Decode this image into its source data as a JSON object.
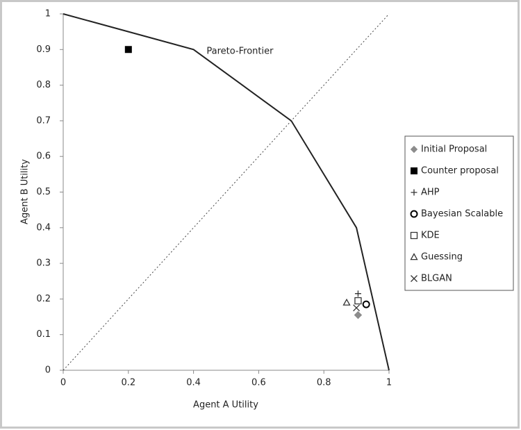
{
  "chart_data": {
    "type": "scatter",
    "x_label": "Agent A Utility",
    "y_label": "Agent B Utility",
    "xlim": [
      0,
      1
    ],
    "ylim": [
      0,
      1
    ],
    "xticks": [
      0,
      0.2,
      0.4,
      0.6,
      0.8,
      1
    ],
    "yticks": [
      0,
      0.1,
      0.2,
      0.3,
      0.4,
      0.5,
      0.6,
      0.7,
      0.8,
      0.9,
      1
    ],
    "grid": false,
    "legend": "right",
    "annotations": [
      {
        "text": "Pareto-Frontier",
        "x": 0.44,
        "y": 0.895
      }
    ],
    "series": [
      {
        "line": "solid",
        "color": "#222222",
        "x": [
          0,
          0.2,
          0.4,
          0.55,
          0.7,
          0.8,
          0.9,
          1
        ],
        "values": [
          1,
          0.95,
          0.9,
          0.8,
          0.7,
          0.55,
          0.4,
          0
        ]
      },
      {
        "line": "dotted",
        "color": "#444444",
        "x": [
          0,
          1
        ],
        "values": [
          0,
          1
        ]
      },
      {
        "name": "Initial Proposal",
        "marker": "diamond",
        "color": "#8c8c8c",
        "x": [
          0.905
        ],
        "values": [
          0.155
        ]
      },
      {
        "name": "Counter proposal",
        "marker": "square-filled",
        "color": "#000000",
        "x": [
          0.2
        ],
        "values": [
          0.9
        ]
      },
      {
        "name": "AHP",
        "marker": "plus",
        "color": "#333333",
        "x": [
          0.905
        ],
        "values": [
          0.215
        ]
      },
      {
        "name": "Bayesian Scalable",
        "marker": "circle",
        "color": "#000000",
        "x": [
          0.93
        ],
        "values": [
          0.185
        ]
      },
      {
        "name": "KDE",
        "marker": "square",
        "color": "#333333",
        "x": [
          0.905
        ],
        "values": [
          0.195
        ]
      },
      {
        "name": "Guessing",
        "marker": "triangle",
        "color": "#333333",
        "x": [
          0.87
        ],
        "values": [
          0.19
        ]
      },
      {
        "name": "BLGAN",
        "marker": "cross",
        "color": "#333333",
        "x": [
          0.9
        ],
        "values": [
          0.175
        ]
      }
    ]
  }
}
